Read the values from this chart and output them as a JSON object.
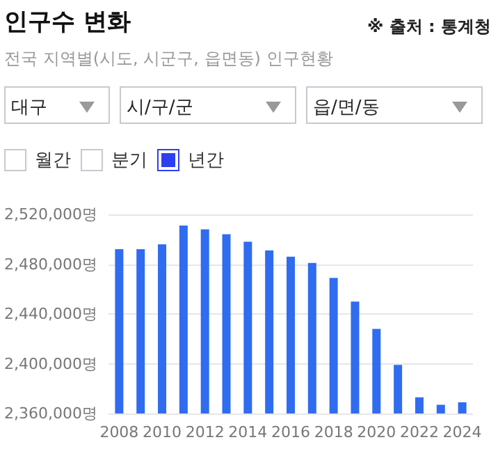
{
  "chart_data": {
    "type": "bar",
    "title": "인구수 변화",
    "subtitle": "전국 지역별(시도, 시군구, 읍면동) 인구현황",
    "annotations": [
      "※ 출처 : 통계청",
      "대구",
      "시/구/군",
      "읍/면/동",
      "월간",
      "분기",
      "년간"
    ],
    "categories": [
      "2008",
      null,
      "2010",
      null,
      "2012",
      null,
      "2014",
      null,
      "2016",
      null,
      "2018",
      null,
      "2020",
      null,
      "2022",
      null,
      "2024"
    ],
    "values": [
      2492000,
      2492000,
      2496000,
      2511000,
      2508000,
      2504000,
      2498000,
      2491000,
      2486000,
      2481000,
      2469000,
      2450000,
      2428000,
      2399000,
      2373000,
      2367000,
      2369000
    ],
    "color": "#2f6cf0",
    "ylim": [
      2360000,
      2520000
    ],
    "yticks": [
      {
        "value": 2360000,
        "label": "2,360,000명"
      },
      {
        "value": 2400000,
        "label": "2,400,000명"
      },
      {
        "value": 2440000,
        "label": "2,440,000명"
      },
      {
        "value": 2480000,
        "label": "2,480,000명"
      },
      {
        "value": 2520000,
        "label": "2,520,000명"
      }
    ],
    "grid": "y"
  }
}
